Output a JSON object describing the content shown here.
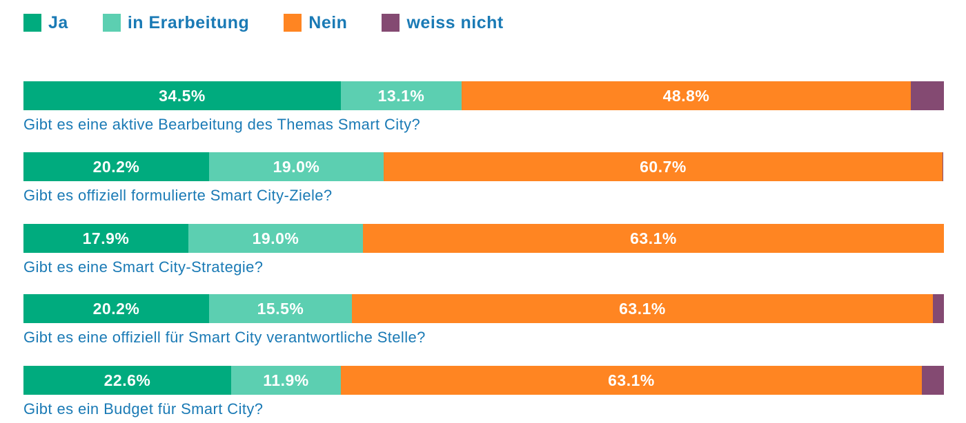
{
  "legend": [
    {
      "label": "Ja",
      "color": "#00ab7e"
    },
    {
      "label": "in Erarbeitung",
      "color": "#5ccfb1"
    },
    {
      "label": "Nein",
      "color": "#ff8522"
    },
    {
      "label": "weiss nicht",
      "color": "#844a72"
    }
  ],
  "chart_data": {
    "type": "bar",
    "orientation": "horizontal",
    "stacked": true,
    "unit": "%",
    "xlim": [
      0,
      100
    ],
    "grid": false,
    "legend_position": "top-left",
    "categories": [
      "Gibt es eine aktive Bearbeitung des Themas Smart City?",
      "Gibt es offiziell formulierte Smart City-Ziele?",
      "Gibt es eine Smart City-Strategie?",
      "Gibt es eine offiziell für Smart City verantwortliche Stelle?",
      "Gibt es ein Budget für Smart City?"
    ],
    "series": [
      {
        "name": "Ja",
        "color": "#00ab7e",
        "values": [
          34.5,
          20.2,
          17.9,
          20.2,
          22.6
        ],
        "labels": [
          "34.5%",
          "20.2%",
          "17.9%",
          "20.2%",
          "22.6%"
        ]
      },
      {
        "name": "in Erarbeitung",
        "color": "#5ccfb1",
        "values": [
          13.1,
          19.0,
          19.0,
          15.5,
          11.9
        ],
        "labels": [
          "13.1%",
          "19.0%",
          "19.0%",
          "15.5%",
          "11.9%"
        ]
      },
      {
        "name": "Nein",
        "color": "#ff8522",
        "values": [
          48.8,
          60.7,
          63.1,
          63.1,
          63.1
        ],
        "labels": [
          "48.8%",
          "60.7%",
          "63.1%",
          "63.1%",
          "63.1%"
        ]
      },
      {
        "name": "weiss nicht",
        "color": "#844a72",
        "values": [
          3.6,
          0.1,
          0.0,
          1.2,
          2.4
        ],
        "labels": [
          "",
          "",
          "",
          "",
          ""
        ]
      }
    ]
  }
}
